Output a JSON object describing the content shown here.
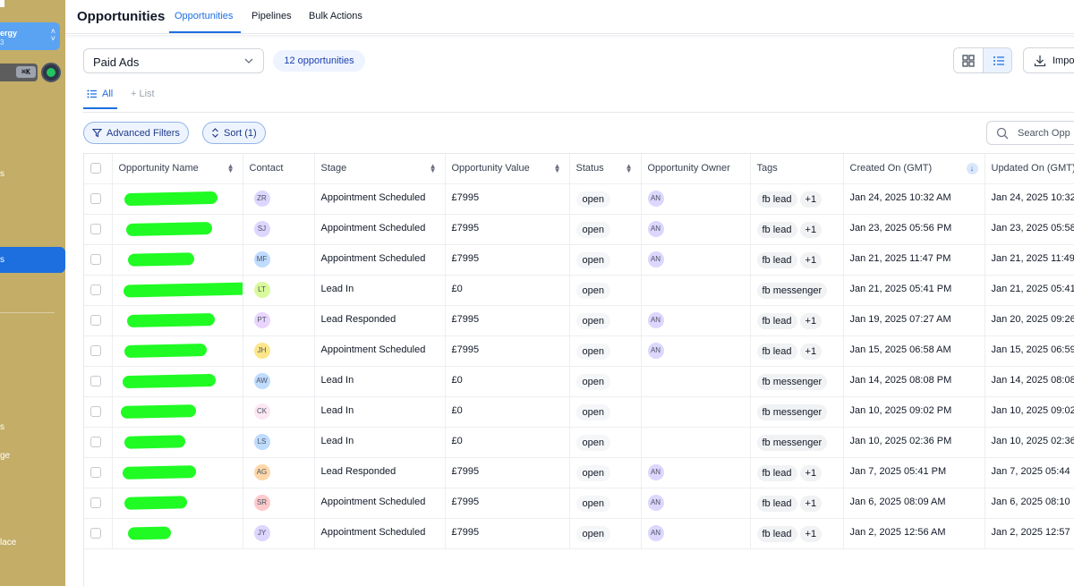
{
  "sidebar": {
    "account_name": "ergy",
    "account_sub": "3",
    "shortcut": "⌘K",
    "fragments": [
      "s",
      "s",
      "s",
      "ge",
      "lace"
    ],
    "active_label": "s"
  },
  "header": {
    "title": "Opportunities",
    "tabs": [
      {
        "label": "Opportunities",
        "active": true
      },
      {
        "label": "Pipelines",
        "active": false
      },
      {
        "label": "Bulk Actions",
        "active": false
      }
    ]
  },
  "toolbar": {
    "pipeline_value": "Paid Ads",
    "count_label": "12 opportunities",
    "import_label": "Impo"
  },
  "views": {
    "all_label": "All",
    "list_label": "+ List"
  },
  "filters": {
    "advanced_label": "Advanced Filters",
    "sort_label": "Sort (1)",
    "search_placeholder": "Search Opp"
  },
  "table": {
    "columns": [
      "Opportunity Name",
      "Contact",
      "Stage",
      "Opportunity Value",
      "Status",
      "Opportunity Owner",
      "Tags",
      "Created On (GMT)",
      "Updated On (GMT)"
    ],
    "rows": [
      {
        "contact": "ZR",
        "contact_color": "#ddd6fe",
        "stage": "Appointment Scheduled",
        "value": "£7995",
        "status": "open",
        "owner": "AN",
        "tag": "fb lead",
        "extra": "+1",
        "created": "Jan 24, 2025 10:32 AM",
        "updated": "Jan 24, 2025 10:32"
      },
      {
        "contact": "SJ",
        "contact_color": "#ddd6fe",
        "stage": "Appointment Scheduled",
        "value": "£7995",
        "status": "open",
        "owner": "AN",
        "tag": "fb lead",
        "extra": "+1",
        "created": "Jan 23, 2025 05:56 PM",
        "updated": "Jan 23, 2025 05:58"
      },
      {
        "contact": "MF",
        "contact_color": "#bfdbfe",
        "stage": "Appointment Scheduled",
        "value": "£7995",
        "status": "open",
        "owner": "AN",
        "tag": "fb lead",
        "extra": "+1",
        "created": "Jan 21, 2025 11:47 PM",
        "updated": "Jan 21, 2025 11:49"
      },
      {
        "contact": "LT",
        "contact_color": "#d9f99d",
        "stage": "Lead In",
        "value": "£0",
        "status": "open",
        "owner": "",
        "tag": "fb messenger",
        "extra": "",
        "created": "Jan 21, 2025 05:41 PM",
        "updated": "Jan 21, 2025 05:41"
      },
      {
        "contact": "PT",
        "contact_color": "#e9d5ff",
        "stage": "Lead Responded",
        "value": "£7995",
        "status": "open",
        "owner": "AN",
        "tag": "fb lead",
        "extra": "+1",
        "created": "Jan 19, 2025 07:27 AM",
        "updated": "Jan 20, 2025 09:26"
      },
      {
        "contact": "JH",
        "contact_color": "#fde68a",
        "stage": "Appointment Scheduled",
        "value": "£7995",
        "status": "open",
        "owner": "AN",
        "tag": "fb lead",
        "extra": "+1",
        "created": "Jan 15, 2025 06:58 AM",
        "updated": "Jan 15, 2025 06:59"
      },
      {
        "contact": "AW",
        "contact_color": "#bfdbfe",
        "stage": "Lead In",
        "value": "£0",
        "status": "open",
        "owner": "",
        "tag": "fb messenger",
        "extra": "",
        "created": "Jan 14, 2025 08:08 PM",
        "updated": "Jan 14, 2025 08:08"
      },
      {
        "contact": "CK",
        "contact_color": "#fce7f3",
        "stage": "Lead In",
        "value": "£0",
        "status": "open",
        "owner": "",
        "tag": "fb messenger",
        "extra": "",
        "created": "Jan 10, 2025 09:02 PM",
        "updated": "Jan 10, 2025 09:02"
      },
      {
        "contact": "LS",
        "contact_color": "#bfdbfe",
        "stage": "Lead In",
        "value": "£0",
        "status": "open",
        "owner": "",
        "tag": "fb messenger",
        "extra": "",
        "created": "Jan 10, 2025 02:36 PM",
        "updated": "Jan 10, 2025 02:36"
      },
      {
        "contact": "AG",
        "contact_color": "#fed7aa",
        "stage": "Lead Responded",
        "value": "£7995",
        "status": "open",
        "owner": "AN",
        "tag": "fb lead",
        "extra": "+1",
        "created": "Jan 7, 2025 05:41 PM",
        "updated": "Jan 7, 2025 05:44"
      },
      {
        "contact": "SR",
        "contact_color": "#fecaca",
        "stage": "Appointment Scheduled",
        "value": "£7995",
        "status": "open",
        "owner": "AN",
        "tag": "fb lead",
        "extra": "+1",
        "created": "Jan 6, 2025 08:09 AM",
        "updated": "Jan 6, 2025 08:10"
      },
      {
        "contact": "JY",
        "contact_color": "#ddd6fe",
        "stage": "Appointment Scheduled",
        "value": "£7995",
        "status": "open",
        "owner": "AN",
        "tag": "fb lead",
        "extra": "+1",
        "created": "Jan 2, 2025 12:56 AM",
        "updated": "Jan 2, 2025 12:57"
      }
    ]
  },
  "colors": {
    "accent": "#1d6fe0",
    "sidebar_bg": "#c3ad67",
    "redaction": "#1ffb23"
  }
}
